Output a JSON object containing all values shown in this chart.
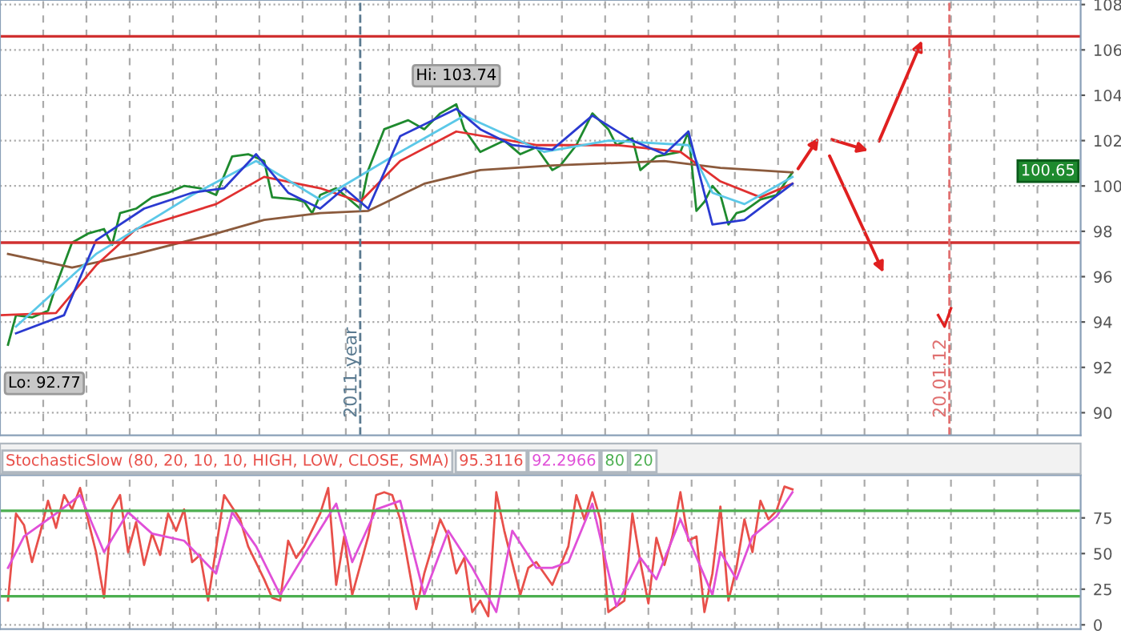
{
  "chart_data": [
    {
      "type": "line",
      "categories": [
        null,
        null,
        null,
        null,
        null,
        null,
        null,
        null,
        null,
        null,
        null,
        null,
        null,
        null,
        null,
        null,
        null,
        null,
        null,
        null,
        null,
        null,
        null,
        null,
        null,
        null,
        null,
        null,
        null,
        null,
        null,
        null,
        null,
        null,
        null,
        null,
        null,
        null,
        null,
        null,
        null,
        null,
        null,
        null,
        null,
        null,
        null,
        null,
        null,
        null,
        null,
        null,
        null,
        null,
        null,
        null,
        null,
        null,
        null,
        null,
        null,
        null,
        null,
        null,
        null,
        null,
        null,
        null,
        null,
        null,
        null,
        null,
        null,
        null,
        null,
        null,
        null,
        null,
        null,
        null,
        null,
        null,
        null,
        null,
        null,
        null,
        null,
        null,
        null,
        null,
        null,
        null,
        null,
        null,
        null,
        null,
        null,
        null,
        null,
        null,
        null,
        null,
        null,
        null,
        null,
        null,
        null,
        null,
        null,
        null,
        null,
        null,
        null,
        null,
        null,
        null,
        null,
        null,
        null,
        null,
        null,
        null,
        null,
        null,
        null,
        null,
        null,
        null,
        null,
        null,
        null,
        null,
        null,
        null,
        null,
        null
      ],
      "ylim": [
        89,
        108.2
      ],
      "yticks": [
        90,
        92,
        94,
        96,
        98,
        100,
        102,
        104,
        106,
        108
      ],
      "tick_labels": "y",
      "grid": true,
      "series": [
        {
          "color": "#1e8a2e",
          "values": [
            null,
            93.0,
            94.3,
            null,
            94.2,
            null,
            94.5,
            95.6,
            null,
            97.5,
            null,
            97.9,
            null,
            98.1,
            97.4,
            98.8,
            null,
            99.0,
            null,
            99.5,
            null,
            99.7,
            null,
            100.0,
            null,
            99.9,
            null,
            99.6,
            null,
            101.3,
            null,
            101.4,
            null,
            101.1,
            99.5,
            null,
            null,
            99.4,
            99.3,
            98.8,
            99.6,
            null,
            99.9,
            null,
            99.3,
            99.0,
            100.7,
            null,
            102.5,
            null,
            null,
            102.9,
            null,
            102.5,
            null,
            103.2,
            null,
            103.6,
            102.5,
            null,
            101.5,
            null,
            null,
            102.0,
            null,
            101.4,
            null,
            101.7,
            null,
            100.7,
            100.9,
            null,
            101.8,
            null,
            103.2,
            null,
            102.5,
            101.8,
            null,
            102.1,
            100.7,
            null,
            101.3,
            null,
            null,
            101.5,
            102.4,
            98.9,
            99.3,
            100.0,
            99.6,
            98.3,
            98.8,
            98.9,
            null,
            99.4,
            null,
            99.6,
            null,
            100.6,
            null,
            null,
            null,
            null,
            null,
            null,
            null,
            null,
            null,
            null,
            null,
            null,
            null,
            null,
            null,
            null,
            null,
            null,
            null,
            null,
            null,
            null,
            null,
            null,
            null,
            null,
            null,
            null,
            null,
            null,
            null,
            null,
            null,
            null,
            null,
            null
          ]
        },
        {
          "color": "#8b5a3c",
          "values": [
            null,
            97.0,
            null,
            null,
            null,
            null,
            null,
            null,
            null,
            96.4,
            null,
            null,
            null,
            null,
            null,
            null,
            null,
            97.0,
            null,
            null,
            null,
            null,
            null,
            null,
            null,
            null,
            null,
            97.9,
            null,
            null,
            null,
            null,
            null,
            98.5,
            null,
            null,
            null,
            null,
            null,
            null,
            98.8,
            null,
            null,
            null,
            null,
            null,
            98.9,
            null,
            null,
            null,
            null,
            null,
            null,
            100.1,
            null,
            null,
            null,
            null,
            null,
            null,
            100.7,
            null,
            null,
            null,
            null,
            null,
            null,
            null,
            null,
            100.9,
            null,
            null,
            null,
            null,
            null,
            null,
            null,
            null,
            null,
            null,
            null,
            null,
            null,
            101.1,
            null,
            null,
            null,
            null,
            null,
            null,
            100.8,
            null,
            null,
            null,
            null,
            null,
            null,
            null,
            null,
            100.6,
            null,
            null,
            null,
            null,
            null,
            null,
            null,
            null,
            null,
            null,
            null,
            null,
            null,
            null,
            null,
            null,
            null,
            null,
            null,
            null,
            null,
            null,
            null,
            null,
            null,
            null,
            null,
            null,
            null,
            null,
            null,
            null,
            null,
            null,
            null,
            null
          ]
        },
        {
          "color": "#e03030",
          "values": [
            94.3,
            null,
            null,
            null,
            null,
            null,
            null,
            94.4,
            null,
            null,
            null,
            null,
            96.5,
            null,
            null,
            null,
            null,
            98.1,
            null,
            null,
            null,
            null,
            null,
            null,
            null,
            null,
            null,
            99.2,
            null,
            null,
            null,
            null,
            null,
            100.4,
            null,
            null,
            null,
            null,
            null,
            null,
            99.9,
            null,
            null,
            null,
            null,
            99.3,
            null,
            null,
            null,
            null,
            101.1,
            null,
            null,
            null,
            null,
            null,
            null,
            102.4,
            null,
            null,
            null,
            null,
            null,
            null,
            null,
            null,
            null,
            101.8,
            null,
            null,
            null,
            null,
            null,
            null,
            null,
            null,
            null,
            101.8,
            null,
            null,
            null,
            null,
            null,
            null,
            null,
            101.5,
            null,
            null,
            null,
            null,
            100.2,
            null,
            null,
            null,
            null,
            99.5,
            null,
            null,
            null,
            100.1,
            null,
            null,
            null,
            null,
            null,
            null,
            null,
            null,
            null,
            null,
            null,
            null,
            null,
            null,
            null,
            null,
            null,
            null,
            null,
            null,
            null,
            null,
            null,
            null,
            null,
            null,
            null,
            null,
            null,
            null,
            null,
            null,
            null,
            null,
            null,
            null
          ]
        },
        {
          "color": "#5bc8e8",
          "values": [
            null,
            null,
            93.8,
            null,
            null,
            null,
            null,
            null,
            null,
            null,
            null,
            null,
            97.0,
            null,
            null,
            null,
            null,
            null,
            null,
            null,
            null,
            null,
            null,
            null,
            99.6,
            null,
            null,
            null,
            null,
            null,
            null,
            null,
            101.1,
            null,
            null,
            null,
            null,
            null,
            null,
            null,
            99.4,
            null,
            null,
            null,
            null,
            null,
            null,
            null,
            null,
            null,
            101.5,
            null,
            null,
            null,
            null,
            null,
            null,
            null,
            103.1,
            null,
            null,
            null,
            null,
            null,
            null,
            null,
            null,
            null,
            101.5,
            null,
            null,
            null,
            null,
            null,
            null,
            null,
            102.0,
            null,
            null,
            null,
            null,
            null,
            null,
            null,
            null,
            null,
            101.8,
            null,
            null,
            99.7,
            null,
            null,
            null,
            99.2,
            null,
            null,
            null,
            null,
            null,
            100.4,
            null,
            null,
            null,
            null,
            null,
            null,
            null,
            null,
            null,
            null,
            null,
            null,
            null,
            null,
            null,
            null,
            null,
            null,
            null,
            null,
            null,
            null,
            null,
            null,
            null,
            null,
            null,
            null,
            null,
            null,
            null,
            null,
            null,
            null,
            null,
            null
          ]
        },
        {
          "color": "#2a3ad0",
          "values": [
            null,
            null,
            93.5,
            null,
            null,
            null,
            null,
            null,
            94.3,
            null,
            null,
            null,
            97.6,
            null,
            null,
            null,
            null,
            null,
            99.0,
            null,
            null,
            null,
            null,
            null,
            99.7,
            null,
            null,
            null,
            99.9,
            null,
            null,
            null,
            101.4,
            null,
            null,
            null,
            99.7,
            null,
            null,
            null,
            99.0,
            null,
            null,
            99.9,
            null,
            null,
            99.0,
            null,
            null,
            null,
            102.2,
            null,
            null,
            null,
            null,
            null,
            null,
            103.4,
            null,
            null,
            102.5,
            null,
            null,
            null,
            101.8,
            null,
            null,
            null,
            null,
            101.6,
            null,
            null,
            null,
            null,
            103.1,
            null,
            null,
            null,
            null,
            102.0,
            null,
            null,
            null,
            101.4,
            null,
            null,
            102.4,
            null,
            null,
            98.3,
            null,
            null,
            null,
            98.5,
            null,
            null,
            null,
            null,
            null,
            100.1,
            null,
            null,
            null,
            null,
            null,
            null,
            null,
            null,
            null,
            null,
            null,
            null,
            null,
            null,
            null,
            null,
            null,
            null,
            null,
            null,
            null,
            null,
            null,
            null,
            null,
            null,
            null,
            null,
            null,
            null,
            null,
            null,
            null,
            null,
            null,
            null
          ]
        }
      ],
      "ref_lines": [
        {
          "axis": "y",
          "value": 106.6,
          "color": "#d03030"
        },
        {
          "axis": "y",
          "value": 97.5,
          "color": "#d03030"
        }
      ],
      "annotations": [
        {
          "text": "Hi: 103.74",
          "y": 103.74
        },
        "Lo: 92.77",
        {
          "text": "100.65",
          "y": 100.65
        },
        "2011 year",
        "20.01.12"
      ]
    },
    {
      "type": "line",
      "title": "StochasticSlow (80, 20, 10, 10, HIGH, LOW, CLOSE, SMA)",
      "categories": [
        null,
        null,
        null,
        null,
        null,
        null,
        null,
        null,
        null,
        null,
        null,
        null,
        null,
        null,
        null,
        null,
        null,
        null,
        null,
        null,
        null,
        null,
        null,
        null,
        null,
        null,
        null,
        null,
        null,
        null,
        null,
        null,
        null,
        null,
        null,
        null,
        null,
        null,
        null,
        null,
        null,
        null,
        null,
        null,
        null,
        null,
        null,
        null,
        null,
        null,
        null,
        null,
        null,
        null,
        null,
        null,
        null,
        null,
        null,
        null,
        null,
        null,
        null,
        null,
        null,
        null,
        null,
        null,
        null,
        null,
        null,
        null,
        null,
        null,
        null,
        null,
        null,
        null,
        null,
        null,
        null,
        null,
        null,
        null,
        null,
        null,
        null,
        null,
        null,
        null,
        null,
        null,
        null,
        null,
        null,
        null,
        null,
        null,
        null,
        null,
        null,
        null,
        null,
        null,
        null,
        null,
        null,
        null,
        null,
        null,
        null,
        null,
        null,
        null,
        null,
        null,
        null,
        null,
        null,
        null,
        null,
        null,
        null,
        null,
        null,
        null,
        null,
        null,
        null,
        null,
        null,
        null,
        null,
        null,
        null,
        null
      ],
      "ylim": [
        -3,
        105
      ],
      "yticks": [
        0,
        25,
        50,
        75
      ],
      "tick_labels": "y",
      "grid": true,
      "series": [
        {
          "color": "#e8504a",
          "values": [
            null,
            17,
            78,
            70,
            44,
            64,
            87,
            68,
            91,
            81,
            96,
            null,
            51,
            19,
            81,
            91,
            51,
            72,
            42,
            64,
            49,
            78,
            66,
            81,
            44,
            49,
            17,
            null,
            91,
            null,
            74,
            55,
            null,
            32,
            19,
            17,
            59,
            47,
            55,
            null,
            78,
            96,
            28,
            62,
            21,
            null,
            62,
            91,
            93,
            91,
            74,
            null,
            11,
            36,
            null,
            74,
            62,
            36,
            47,
            9,
            17,
            6,
            93,
            66,
            null,
            21,
            40,
            44,
            36,
            28,
            null,
            55,
            91,
            74,
            93,
            74,
            9,
            null,
            17,
            78,
            44,
            15,
            61,
            42,
            62,
            93,
            59,
            62,
            9,
            36,
            83,
            17,
            40,
            74,
            51,
            87,
            74,
            80,
            97,
            95,
            null,
            null,
            null,
            null,
            null,
            null,
            null,
            null,
            null,
            null,
            null,
            null,
            null,
            null,
            null,
            null,
            null,
            null,
            null,
            null,
            null,
            null,
            null,
            null,
            null,
            null,
            null,
            null,
            null,
            null,
            null,
            null,
            null,
            null,
            null,
            null
          ]
        },
        {
          "color": "#e050d8",
          "values": [
            null,
            40,
            null,
            62,
            null,
            null,
            null,
            78,
            null,
            null,
            91,
            null,
            null,
            51,
            null,
            null,
            79,
            null,
            null,
            64,
            null,
            null,
            null,
            59,
            null,
            null,
            null,
            36,
            null,
            79,
            null,
            null,
            55,
            null,
            null,
            21,
            null,
            null,
            49,
            null,
            null,
            null,
            85,
            null,
            44,
            null,
            null,
            81,
            null,
            null,
            87,
            null,
            null,
            21,
            null,
            null,
            66,
            null,
            null,
            40,
            null,
            null,
            9,
            null,
            66,
            null,
            null,
            40,
            null,
            40,
            null,
            44,
            null,
            null,
            85,
            null,
            null,
            13,
            null,
            null,
            47,
            null,
            32,
            null,
            null,
            74,
            null,
            null,
            null,
            21,
            51,
            null,
            32,
            null,
            62,
            null,
            null,
            76,
            null,
            93,
            null,
            null,
            null,
            null,
            null,
            null,
            null,
            null,
            null,
            null,
            null,
            null,
            null,
            null,
            null,
            null,
            null,
            null,
            null,
            null,
            null,
            null,
            null,
            null,
            null,
            null,
            null,
            null,
            null,
            null,
            null,
            null,
            null,
            null,
            null,
            null
          ]
        }
      ],
      "ref_lines": [
        {
          "axis": "y",
          "value": 80,
          "label": "80",
          "color": "#4caf50"
        },
        {
          "axis": "y",
          "value": 20,
          "label": "20",
          "color": "#4caf50"
        }
      ],
      "annotations": [
        "95.3116",
        "92.2966"
      ]
    }
  ]
}
